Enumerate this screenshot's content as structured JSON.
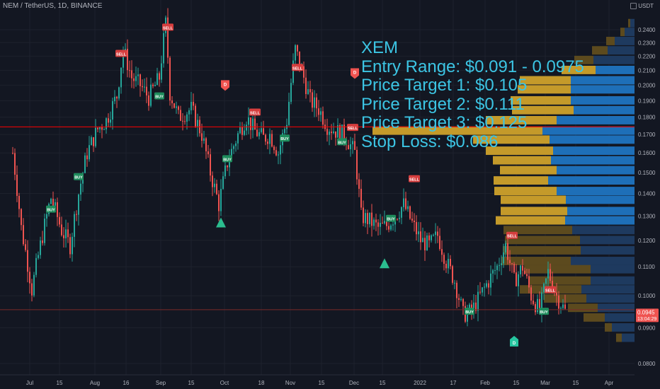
{
  "header": {
    "symbol_line": "NEM / TetherUS, 1D, BINANCE"
  },
  "currency": {
    "label": "USDT"
  },
  "overlay": {
    "lines": [
      "XEM",
      "Entry Range: $0.091 - 0.0975",
      "Price Target 1: $0.105",
      "Price Target 2: $0.111",
      "Price Target 3: $0.125",
      "Stop Loss: $0.086"
    ]
  },
  "colors": {
    "background": "#131722",
    "bull": "#26a69a",
    "bear": "#ef5350",
    "overlay_text": "#3cc5e4",
    "profile_gold": "#c49a2a",
    "profile_blue": "#1e6fb8",
    "resistance_line": "#ff0000",
    "price_badge": "#ef5350"
  },
  "chart_data": {
    "type": "candlestick",
    "x_axis": {
      "tick_labels": [
        "Jul",
        "15",
        "Aug",
        "16",
        "Sep",
        "15",
        "Oct",
        "18",
        "Nov",
        "15",
        "Dec",
        "15",
        "2022",
        "17",
        "Feb",
        "15",
        "Mar",
        "15",
        "Apr"
      ]
    },
    "y_axis": {
      "scale": "log",
      "range": [
        0.0785,
        0.252
      ],
      "tick_labels": [
        "0.2400",
        "0.2300",
        "0.2200",
        "0.2100",
        "0.2000",
        "0.1900",
        "0.1800",
        "0.1700",
        "0.1600",
        "0.1500",
        "0.1400",
        "0.1300",
        "0.1200",
        "0.1100",
        "0.1000",
        "0.0900",
        "0.0800"
      ],
      "tick_values": [
        0.24,
        0.23,
        0.22,
        0.21,
        0.2,
        0.19,
        0.18,
        0.17,
        0.16,
        0.15,
        0.14,
        0.13,
        0.12,
        0.11,
        0.1,
        0.09,
        0.08
      ]
    },
    "last_price": {
      "value": 0.0945,
      "label": "0.0945",
      "countdown": "13:04:29"
    },
    "resistance_level": 0.1743,
    "lower_line_level": 0.0955,
    "price_path_date_close": [
      [
        "Jun 23",
        0.16
      ],
      [
        "Jun 27",
        0.125
      ],
      [
        "Jul 2",
        0.102
      ],
      [
        "Jul 7",
        0.122
      ],
      [
        "Jul 11",
        0.138
      ],
      [
        "Jul 16",
        0.124
      ],
      [
        "Jul 20",
        0.118
      ],
      [
        "Jul 24",
        0.14
      ],
      [
        "Jul 28",
        0.16
      ],
      [
        "Aug 2",
        0.173
      ],
      [
        "Aug 6",
        0.178
      ],
      [
        "Aug 11",
        0.193
      ],
      [
        "Aug 14",
        0.225
      ],
      [
        "Aug 18",
        0.205
      ],
      [
        "Aug 22",
        0.2
      ],
      [
        "Aug 26",
        0.192
      ],
      [
        "Aug 31",
        0.205
      ],
      [
        "Sep 3",
        0.245
      ],
      [
        "Sep 5",
        0.195
      ],
      [
        "Sep 9",
        0.18
      ],
      [
        "Sep 15",
        0.185
      ],
      [
        "Sep 20",
        0.17
      ],
      [
        "Sep 24",
        0.15
      ],
      [
        "Sep 28",
        0.135
      ],
      [
        "Oct 2",
        0.155
      ],
      [
        "Oct 7",
        0.17
      ],
      [
        "Oct 11",
        0.18
      ],
      [
        "Oct 15",
        0.172
      ],
      [
        "Oct 19",
        0.168
      ],
      [
        "Oct 22",
        0.17
      ],
      [
        "Oct 26",
        0.16
      ],
      [
        "Oct 30",
        0.178
      ],
      [
        "Nov 3",
        0.225
      ],
      [
        "Nov 6",
        0.21
      ],
      [
        "Nov 10",
        0.19
      ],
      [
        "Nov 14",
        0.185
      ],
      [
        "Nov 18",
        0.175
      ],
      [
        "Nov 22",
        0.172
      ],
      [
        "Nov 26",
        0.17
      ],
      [
        "Dec 1",
        0.16
      ],
      [
        "Dec 4",
        0.13
      ],
      [
        "Dec 8",
        0.128
      ],
      [
        "Dec 12",
        0.125
      ],
      [
        "Dec 16",
        0.126
      ],
      [
        "Dec 20",
        0.13
      ],
      [
        "Dec 24",
        0.135
      ],
      [
        "Dec 28",
        0.127
      ],
      [
        "Jan 1",
        0.12
      ],
      [
        "Jan 5",
        0.118
      ],
      [
        "Jan 9",
        0.122
      ],
      [
        "Jan 13",
        0.112
      ],
      [
        "Jan 17",
        0.105
      ],
      [
        "Jan 21",
        0.094
      ],
      [
        "Jan 25",
        0.095
      ],
      [
        "Jan 29",
        0.1
      ],
      [
        "Feb 2",
        0.105
      ],
      [
        "Feb 6",
        0.11
      ],
      [
        "Feb 10",
        0.118
      ],
      [
        "Feb 14",
        0.105
      ],
      [
        "Feb 18",
        0.11
      ],
      [
        "Feb 22",
        0.1
      ],
      [
        "Feb 26",
        0.095
      ],
      [
        "Mar 2",
        0.108
      ],
      [
        "Mar 6",
        0.1
      ],
      [
        "Mar 10",
        0.095
      ]
    ],
    "signals": [
      {
        "label": "BUY",
        "date": "Jul 11",
        "price": 0.133
      },
      {
        "label": "BUY",
        "date": "Jul 24",
        "price": 0.148
      },
      {
        "label": "SELL",
        "date": "Aug 13",
        "price": 0.222
      },
      {
        "label": "BUY",
        "date": "Aug 31",
        "price": 0.193
      },
      {
        "label": "SELL",
        "date": "Sep 4",
        "price": 0.242
      },
      {
        "label": "BUY",
        "date": "Oct 2",
        "price": 0.157
      },
      {
        "label": "SELL",
        "date": "Oct 15",
        "price": 0.183
      },
      {
        "label": "BUY",
        "date": "Oct 29",
        "price": 0.168
      },
      {
        "label": "SELL",
        "date": "Nov 4",
        "price": 0.212
      },
      {
        "label": "BUY",
        "date": "Nov 25",
        "price": 0.166
      },
      {
        "label": "SELL",
        "date": "Nov 30",
        "price": 0.174
      },
      {
        "label": "SELL",
        "date": "Dec 29",
        "price": 0.147
      },
      {
        "label": "BUY",
        "date": "Dec 18",
        "price": 0.129
      },
      {
        "label": "BUY",
        "date": "Jan 24",
        "price": 0.095
      },
      {
        "label": "SELL",
        "date": "Feb 13",
        "price": 0.122
      },
      {
        "label": "SELL",
        "date": "Mar 3",
        "price": 0.102
      },
      {
        "label": "BUY",
        "date": "Feb 28",
        "price": 0.095
      }
    ],
    "markers": [
      {
        "label": "D",
        "kind": "sell-flag",
        "date": "Oct 1",
        "price": 0.2
      },
      {
        "label": "D",
        "kind": "sell-flag",
        "date": "Dec 1",
        "price": 0.208
      },
      {
        "label": "D",
        "kind": "buy-flag",
        "date": "Feb 14",
        "price": 0.086
      },
      {
        "label": "",
        "kind": "up-triangle",
        "date": "Sep 29",
        "price": 0.127
      },
      {
        "label": "",
        "kind": "up-triangle",
        "date": "Dec 15",
        "price": 0.111
      }
    ],
    "volume_profile": {
      "rows_price_high_to_low": [
        0.245,
        0.238,
        0.231,
        0.224,
        0.217,
        0.21,
        0.203,
        0.197,
        0.19,
        0.184,
        0.178,
        0.172,
        0.167,
        0.161,
        0.156,
        0.151,
        0.146,
        0.141,
        0.137,
        0.132,
        0.128,
        0.124,
        0.12,
        0.116,
        0.112,
        0.109,
        0.105,
        0.102,
        0.099,
        0.096,
        0.093,
        0.09,
        0.087
      ],
      "gold_volume": [
        3,
        6,
        12,
        22,
        27,
        48,
        72,
        75,
        85,
        87,
        100,
        240,
        108,
        95,
        82,
        80,
        77,
        88,
        92,
        94,
        98,
        97,
        106,
        110,
        98,
        94,
        86,
        87,
        60,
        42,
        30,
        10,
        8
      ],
      "blue_volume": [
        6,
        14,
        28,
        38,
        58,
        55,
        90,
        90,
        90,
        86,
        110,
        130,
        120,
        115,
        118,
        110,
        122,
        110,
        97,
        95,
        98,
        88,
        77,
        76,
        90,
        62,
        62,
        75,
        68,
        52,
        42,
        32,
        18
      ]
    }
  }
}
